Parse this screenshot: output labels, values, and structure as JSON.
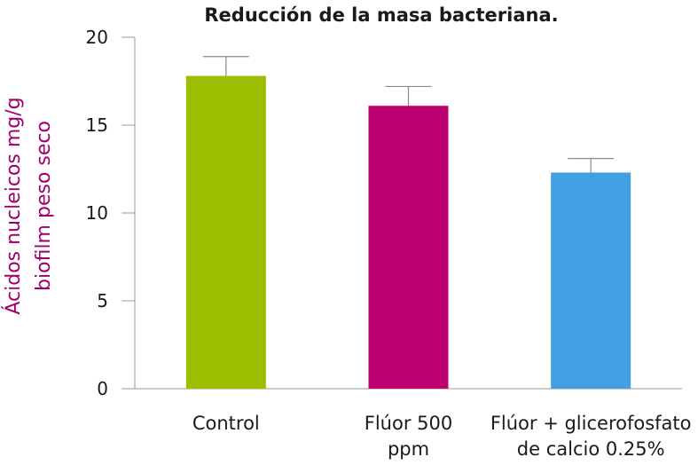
{
  "chart_data": {
    "type": "bar",
    "title": "Reducción de la masa bacteriana.",
    "ylabel_lines": [
      "Ácidos nucleicos mg/g",
      "biofilm peso seco"
    ],
    "xlabel": "",
    "ylim": [
      0,
      20
    ],
    "yticks": [
      0,
      5,
      10,
      15,
      20
    ],
    "categories": [
      [
        "Control"
      ],
      [
        "Flúor 500",
        "ppm"
      ],
      [
        "Flúor + glicerofosfato",
        "de calcio 0.25%"
      ]
    ],
    "values": [
      17.8,
      16.1,
      12.3
    ],
    "error_upper": [
      18.9,
      17.2,
      13.1
    ],
    "colors": [
      "#9bbf00",
      "#bc0070",
      "#429fe2"
    ],
    "grid": false,
    "legend": "none"
  }
}
